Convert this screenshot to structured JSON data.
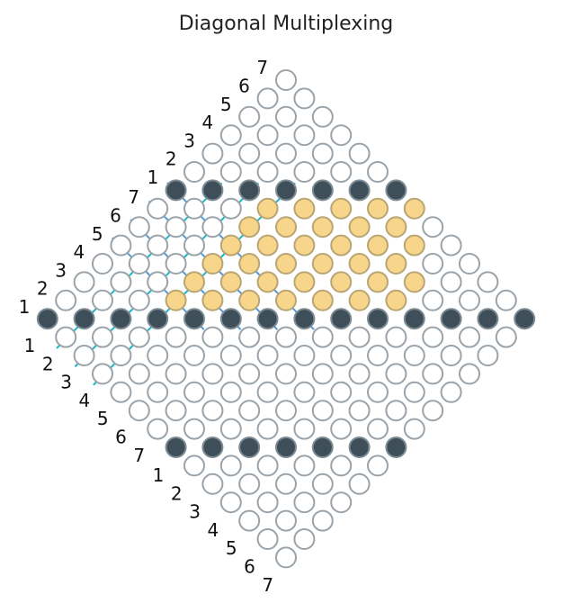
{
  "title": "Diagonal Multiplexing",
  "colors": {
    "empty_fill": "#ffffff",
    "empty_stroke": "#9aa3aa",
    "dark_fill": "#3f4f59",
    "dark_stroke": "#7d8b94",
    "yellow_fill": "#f7d68c",
    "yellow_stroke": "#b9a574",
    "line_blue": "#4c9ad8",
    "line_cyan": "#14b8c8"
  },
  "diagram": {
    "lattice_size": 14,
    "dark_rows": [
      {
        "row_offset": 7,
        "span": [
          0,
          13
        ],
        "step": 2
      },
      {
        "row_offset": 14,
        "span": [
          7,
          13
        ],
        "step": 2
      }
    ],
    "yellow_region": {
      "rows": [
        2,
        6
      ],
      "cols": [
        1,
        7
      ]
    },
    "dark_top_row": {
      "row": 1,
      "cols": [
        0,
        6
      ]
    },
    "labels": {
      "upper_left_a": [
        "1",
        "2",
        "3",
        "4",
        "5",
        "6",
        "7"
      ],
      "upper_left_b": [
        "1",
        "2",
        "3",
        "4",
        "5",
        "6",
        "7"
      ],
      "lower_left_a": [
        "1",
        "2",
        "3",
        "4",
        "5",
        "6",
        "7"
      ],
      "lower_left_b": [
        "1",
        "2",
        "3",
        "4",
        "5",
        "6",
        "7"
      ]
    }
  }
}
